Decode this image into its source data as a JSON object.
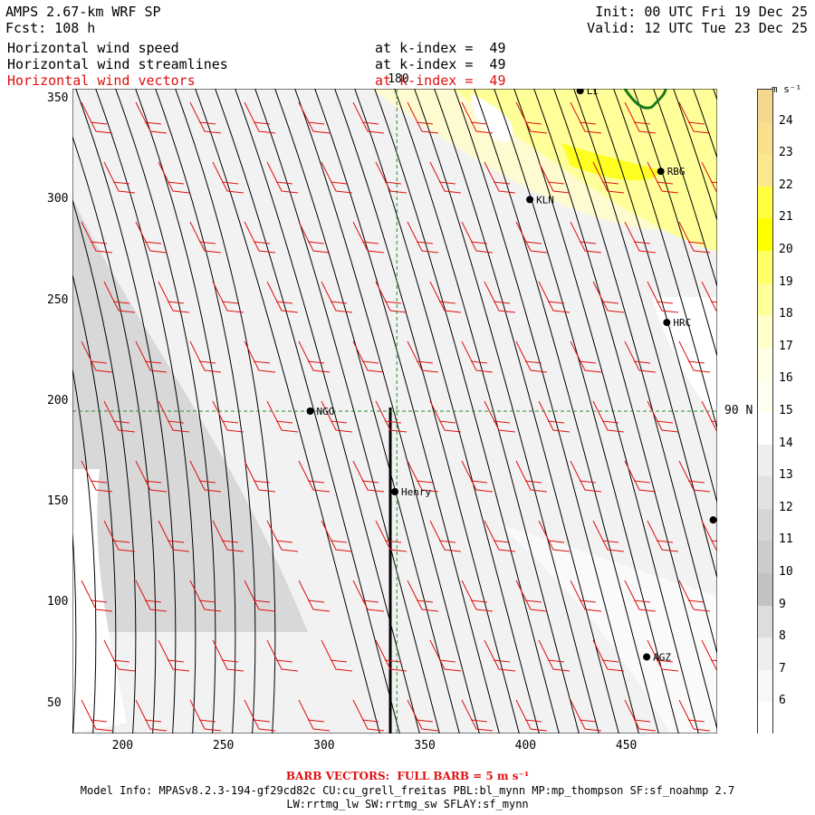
{
  "header": {
    "model": "AMPS 2.67-km WRF SP",
    "fcst": "Fcst: 108 h",
    "init": "Init: 00 UTC Fri 19 Dec 25",
    "valid": "Valid: 12 UTC Tue 23 Dec 25"
  },
  "layers": [
    {
      "label": "Horizontal wind speed",
      "level": "at k-index =  49",
      "color": "#000000"
    },
    {
      "label": "Horizontal wind streamlines",
      "level": "at k-index =  49",
      "color": "#000000"
    },
    {
      "label": "Horizontal wind vectors",
      "level": "at k-index =  49",
      "color": "#e01010"
    }
  ],
  "map": {
    "x_ticks": [
      "200",
      "250",
      "300",
      "350",
      "400",
      "450"
    ],
    "y_ticks": [
      "350",
      "300",
      "250",
      "200",
      "150",
      "100",
      "50"
    ],
    "x_range": [
      175,
      495
    ],
    "y_range": [
      35,
      355
    ],
    "meridian_label": "180",
    "parallel_label": "90 N",
    "meridian_x": 336,
    "parallel_y": 195,
    "stations": [
      {
        "name": "KLN",
        "x": 402,
        "y": 300
      },
      {
        "name": "RBG",
        "x": 467,
        "y": 314
      },
      {
        "name": "HRC",
        "x": 470,
        "y": 239
      },
      {
        "name": "NGO",
        "x": 293,
        "y": 195
      },
      {
        "name": "Henry",
        "x": 335,
        "y": 155
      },
      {
        "name": "AGZ",
        "x": 460,
        "y": 73
      },
      {
        "name": "LI",
        "x": 427,
        "y": 354
      },
      {
        "name": "",
        "x": 493,
        "y": 141
      }
    ],
    "colors": {
      "streamline": "#000000",
      "barb": "#e01010",
      "grid": "#2a8a2a",
      "coast": "#1a7a1a"
    }
  },
  "colorbar": {
    "unit_label": "m s⁻¹",
    "labels": [
      "24",
      "23",
      "22",
      "21",
      "20",
      "19",
      "18",
      "17",
      "16",
      "15",
      "14",
      "13",
      "12",
      "11",
      "10",
      "9",
      "8",
      "7",
      "6"
    ],
    "colors": [
      "#ffffff",
      "#e6e6e6",
      "#dcdcdc",
      "#d0d0d0",
      "#c4c4c4",
      "#cccccc",
      "#ffffe6",
      "#ffffcc",
      "#ffff99",
      "#ffff66",
      "#ffff33",
      "#ffff00",
      "#f5ef00",
      "#ffff80",
      "#ffe680",
      "#fbe38a",
      "#f8d88c",
      "#f3d28f",
      "#f0c880",
      "#eed090"
    ]
  },
  "footer": {
    "barb_note": "BARB VECTORS:  FULL BARB = 5 m s⁻¹",
    "model_info": "Model Info: MPASv8.2.3-194-gf29cd82c CU:cu_grell_freitas PBL:bl_mynn MP:mp_thompson SF:sf_noahmp 2.7",
    "schemes": "LW:rrtmg_lw SW:rrtmg_sw SFLAY:sf_mynn"
  }
}
